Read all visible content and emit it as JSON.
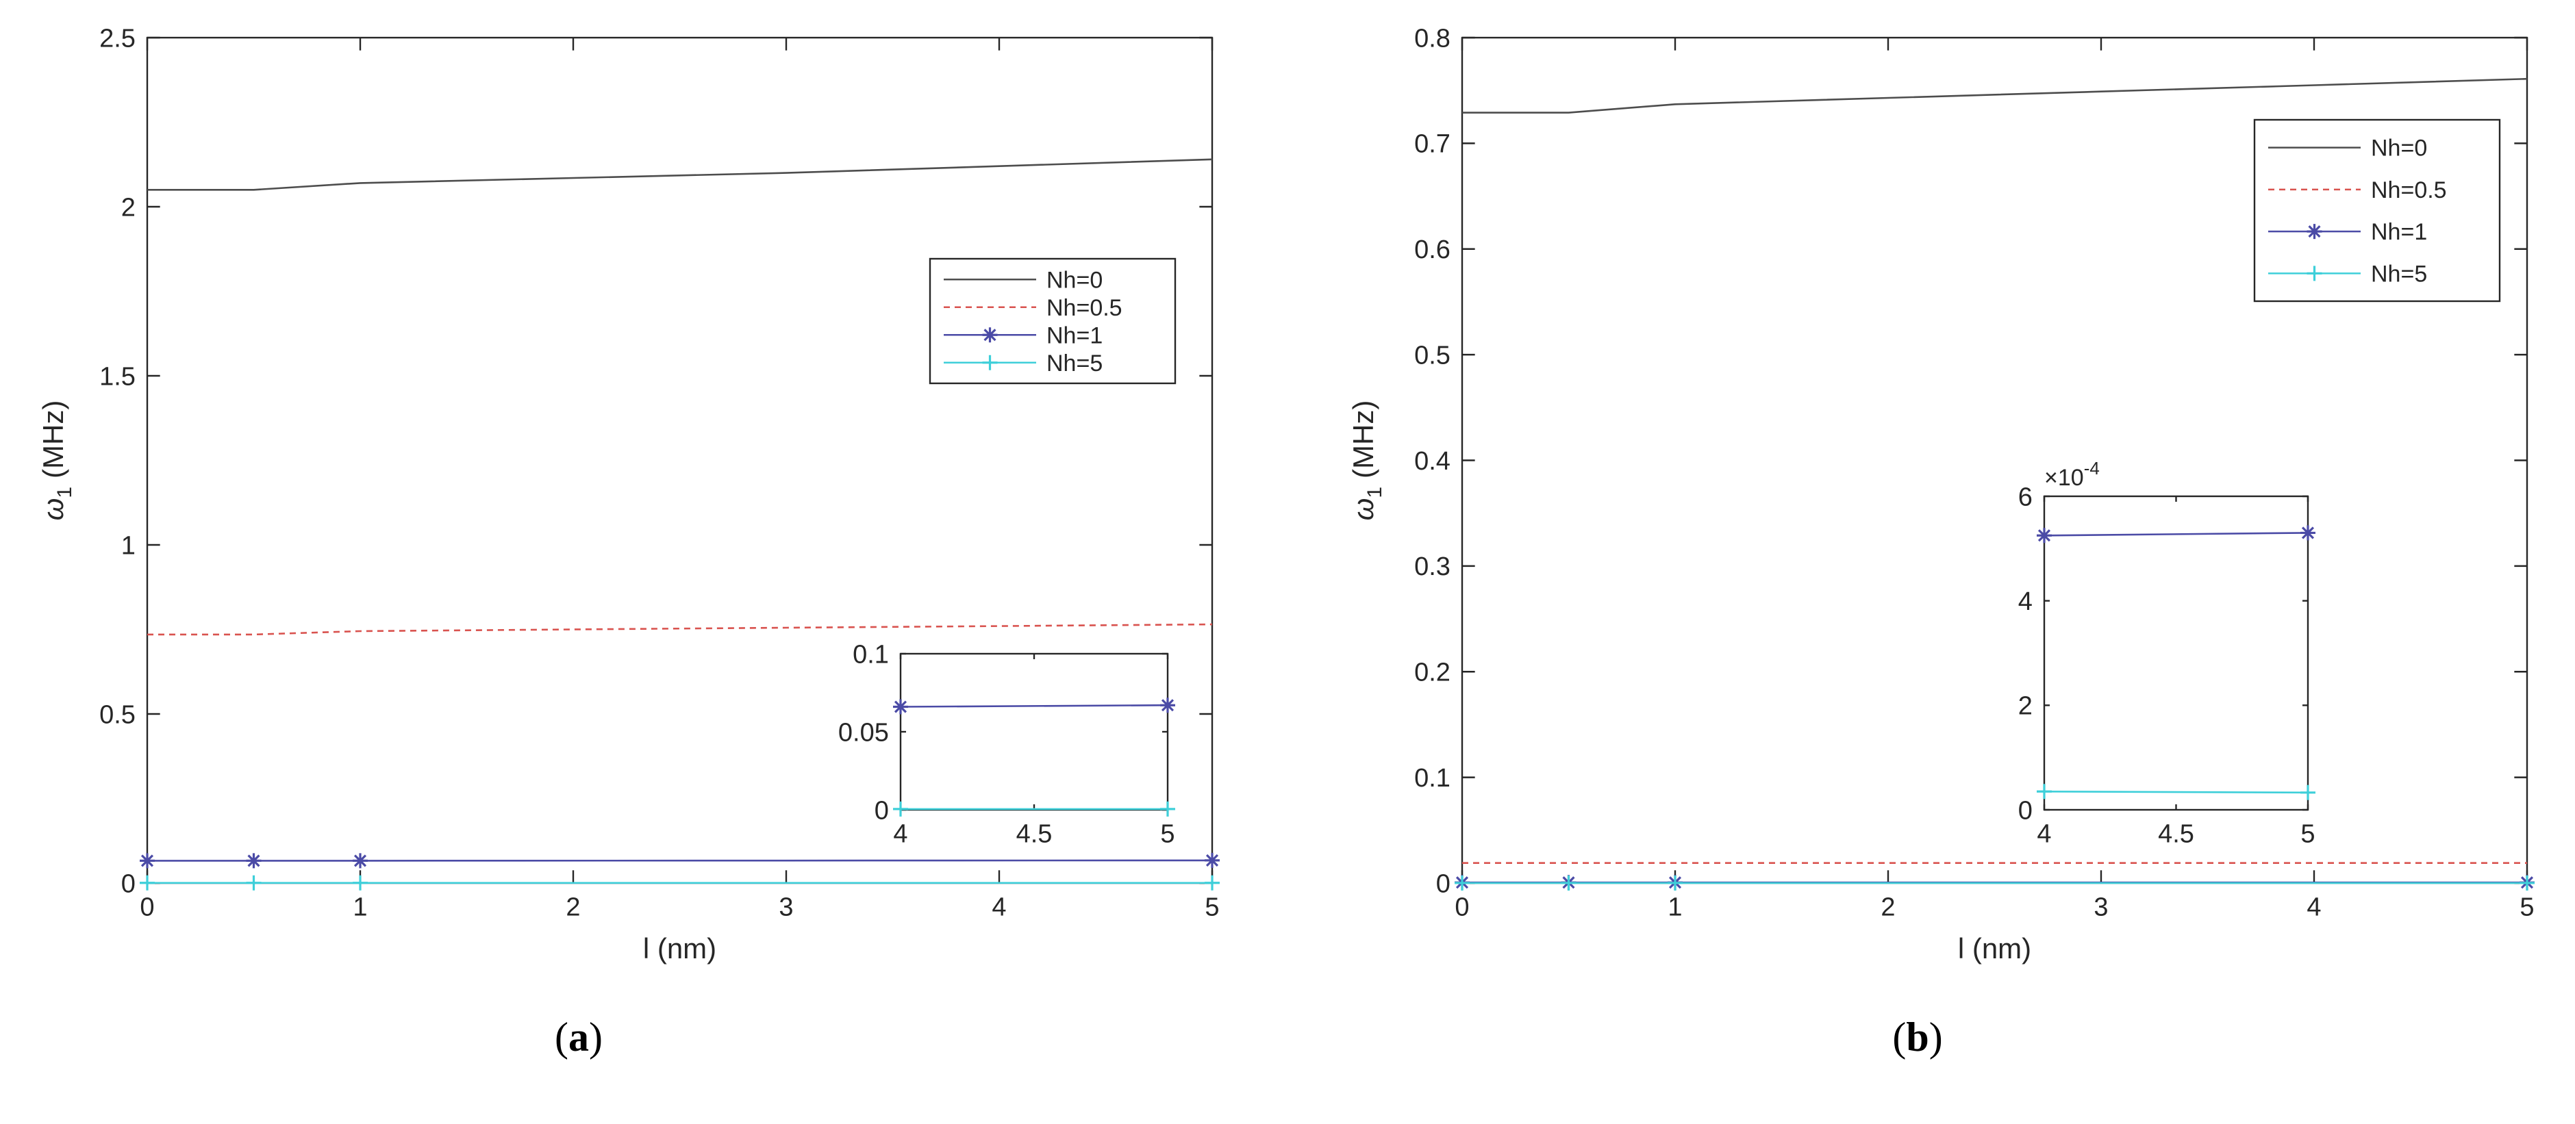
{
  "chart_data": [
    {
      "type": "line",
      "panel_label": "a",
      "xlabel": "l (nm)",
      "ylabel": "ω₁ (MHz)",
      "ylabel_main": "ω",
      "ylabel_sub": "1",
      "ylabel_unit": "(MHz)",
      "xlim": [
        0,
        5
      ],
      "ylim": [
        0,
        2.5
      ],
      "xticks": [
        0,
        1,
        2,
        3,
        4,
        5
      ],
      "xtick_labels": [
        "0",
        "1",
        "2",
        "3",
        "4",
        "5"
      ],
      "yticks": [
        0,
        0.5,
        1,
        1.5,
        2,
        2.5
      ],
      "ytick_labels": [
        "0",
        "0.5",
        "1",
        "1.5",
        "2",
        "2.5"
      ],
      "legend_position": "right",
      "series": [
        {
          "name": "Nh=0",
          "color": "#4d4d4d",
          "style": "solid",
          "marker": "none",
          "x": [
            0,
            0.5,
            1,
            2,
            3,
            4,
            5
          ],
          "values": [
            2.05,
            2.05,
            2.07,
            2.085,
            2.1,
            2.12,
            2.14
          ]
        },
        {
          "name": "Nh=0.5",
          "color": "#d9534f",
          "style": "dashed",
          "marker": "none",
          "x": [
            0,
            0.5,
            1,
            2,
            3,
            4,
            5
          ],
          "values": [
            0.735,
            0.735,
            0.745,
            0.75,
            0.755,
            0.76,
            0.765
          ]
        },
        {
          "name": "Nh=1",
          "color": "#4b4ba6",
          "style": "solid",
          "marker": "asterisk",
          "x": [
            0,
            0.5,
            1,
            5
          ],
          "values": [
            0.066,
            0.066,
            0.066,
            0.067
          ]
        },
        {
          "name": "Nh=5",
          "color": "#3ecfd9",
          "style": "solid",
          "marker": "plus",
          "x": [
            0,
            0.5,
            1,
            5
          ],
          "values": [
            0.0005,
            0.0005,
            0.0005,
            0.0005
          ]
        }
      ],
      "inset": {
        "xlim": [
          4,
          5
        ],
        "ylim": [
          0,
          0.1
        ],
        "xticks": [
          4,
          4.5,
          5
        ],
        "xtick_labels": [
          "4",
          "4.5",
          "5"
        ],
        "yticks": [
          0,
          0.05,
          0.1
        ],
        "ytick_labels": [
          "0",
          "0.05",
          "0.1"
        ],
        "exponent_label": "",
        "series": [
          {
            "name": "Nh=1",
            "color": "#4b4ba6",
            "marker": "asterisk",
            "x": [
              4,
              5
            ],
            "values": [
              0.066,
              0.067
            ]
          },
          {
            "name": "Nh=5",
            "color": "#3ecfd9",
            "marker": "plus",
            "x": [
              4,
              5
            ],
            "values": [
              0.0005,
              0.0005
            ]
          }
        ]
      }
    },
    {
      "type": "line",
      "panel_label": "b",
      "xlabel": "l (nm)",
      "ylabel": "ω₁ (MHz)",
      "ylabel_main": "ω",
      "ylabel_sub": "1",
      "ylabel_unit": "(MHz)",
      "xlim": [
        0,
        5
      ],
      "ylim": [
        0,
        0.8
      ],
      "xticks": [
        0,
        1,
        2,
        3,
        4,
        5
      ],
      "xtick_labels": [
        "0",
        "1",
        "2",
        "3",
        "4",
        "5"
      ],
      "yticks": [
        0,
        0.1,
        0.2,
        0.3,
        0.4,
        0.5,
        0.6,
        0.7,
        0.8
      ],
      "ytick_labels": [
        "0",
        "0.1",
        "0.2",
        "0.3",
        "0.4",
        "0.5",
        "0.6",
        "0.7",
        "0.8"
      ],
      "legend_position": "top-right",
      "series": [
        {
          "name": "Nh=0",
          "color": "#4d4d4d",
          "style": "solid",
          "marker": "none",
          "x": [
            0,
            0.5,
            1,
            2,
            3,
            4,
            5
          ],
          "values": [
            0.729,
            0.729,
            0.737,
            0.743,
            0.749,
            0.755,
            0.761
          ]
        },
        {
          "name": "Nh=0.5",
          "color": "#d9534f",
          "style": "dashed",
          "marker": "none",
          "x": [
            0,
            0.5,
            1,
            2,
            3,
            4,
            5
          ],
          "values": [
            0.019,
            0.019,
            0.019,
            0.019,
            0.019,
            0.019,
            0.019
          ]
        },
        {
          "name": "Nh=1",
          "color": "#4b4ba6",
          "style": "solid",
          "marker": "asterisk",
          "x": [
            0,
            0.5,
            1,
            5
          ],
          "values": [
            0.0005,
            0.0005,
            0.0005,
            0.0005
          ]
        },
        {
          "name": "Nh=5",
          "color": "#3ecfd9",
          "style": "solid",
          "marker": "plus",
          "x": [
            0,
            0.5,
            1,
            5
          ],
          "values": [
            3e-05,
            3e-05,
            3e-05,
            3e-05
          ]
        }
      ],
      "inset": {
        "xlim": [
          4,
          5
        ],
        "ylim": [
          0,
          6
        ],
        "xticks": [
          4,
          4.5,
          5
        ],
        "xtick_labels": [
          "4",
          "4.5",
          "5"
        ],
        "yticks": [
          0,
          2,
          4,
          6
        ],
        "ytick_labels": [
          "0",
          "2",
          "4",
          "6"
        ],
        "exponent_label": "×10⁻⁴",
        "exponent_base": "×10",
        "exponent_power": "-4",
        "series": [
          {
            "name": "Nh=1",
            "color": "#4b4ba6",
            "marker": "asterisk",
            "x": [
              4,
              5
            ],
            "values": [
              5.25,
              5.3
            ]
          },
          {
            "name": "Nh=5",
            "color": "#3ecfd9",
            "marker": "plus",
            "x": [
              4,
              5
            ],
            "values": [
              0.35,
              0.33
            ]
          }
        ]
      }
    }
  ]
}
